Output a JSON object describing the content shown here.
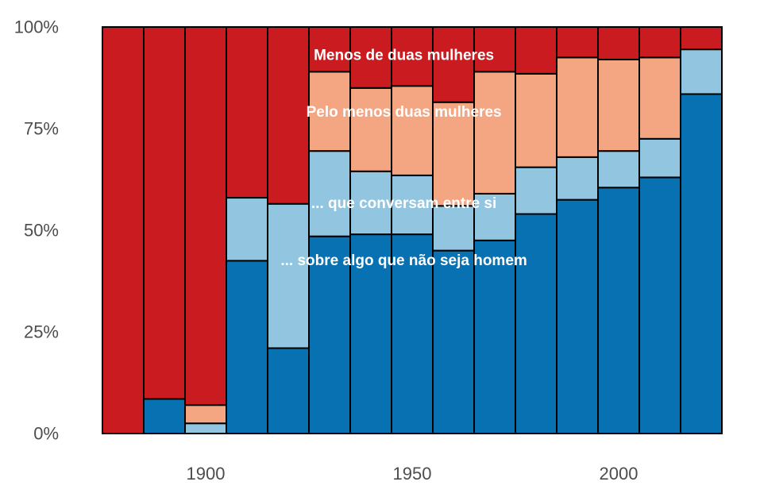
{
  "chart_data": {
    "type": "bar",
    "stacked": true,
    "categories": [
      1880,
      1890,
      1900,
      1910,
      1920,
      1930,
      1940,
      1950,
      1960,
      1970,
      1980,
      1990,
      2000,
      2010,
      2020
    ],
    "series": [
      {
        "color": "#0771b2",
        "values": [
          0,
          8.5,
          0,
          42.5,
          21,
          48.5,
          49,
          49,
          45,
          47.5,
          54,
          57.5,
          60.5,
          63,
          83.5
        ]
      },
      {
        "color": "#92c5df",
        "values": [
          0,
          0,
          2.5,
          15.5,
          35.5,
          21,
          15.5,
          14.5,
          11,
          11.5,
          11.5,
          10.5,
          9,
          9.5,
          11
        ]
      },
      {
        "color": "#f4a582",
        "values": [
          0,
          0,
          4.5,
          0,
          0,
          19.5,
          20.5,
          22,
          25.5,
          30,
          23,
          24.5,
          22.5,
          20,
          0
        ]
      },
      {
        "color": "#ca1b21",
        "values": [
          100,
          91.5,
          93,
          42,
          43.5,
          11,
          15,
          14.5,
          18.5,
          11,
          11.5,
          7.5,
          8,
          7.5,
          5.5
        ]
      }
    ],
    "x_ticks": [
      "1900",
      "1950",
      "2000"
    ],
    "y_ticks": [
      "0%",
      "25%",
      "50%",
      "75%",
      "100%"
    ],
    "ylim": [
      0,
      100
    ],
    "annotations": [
      {
        "text": "Menos de duas mulheres",
        "x": 1953,
        "y": 93
      },
      {
        "text": "Pelo menos duas mulheres",
        "x": 1953,
        "y": 79
      },
      {
        "text": "... que conversam entre si",
        "x": 1953,
        "y": 56.5
      },
      {
        "text": "... sobre algo que não seja homem",
        "x": 1953,
        "y": 42.5
      }
    ],
    "grid": false,
    "legend": "none",
    "title": "",
    "xlabel": "",
    "ylabel": ""
  }
}
